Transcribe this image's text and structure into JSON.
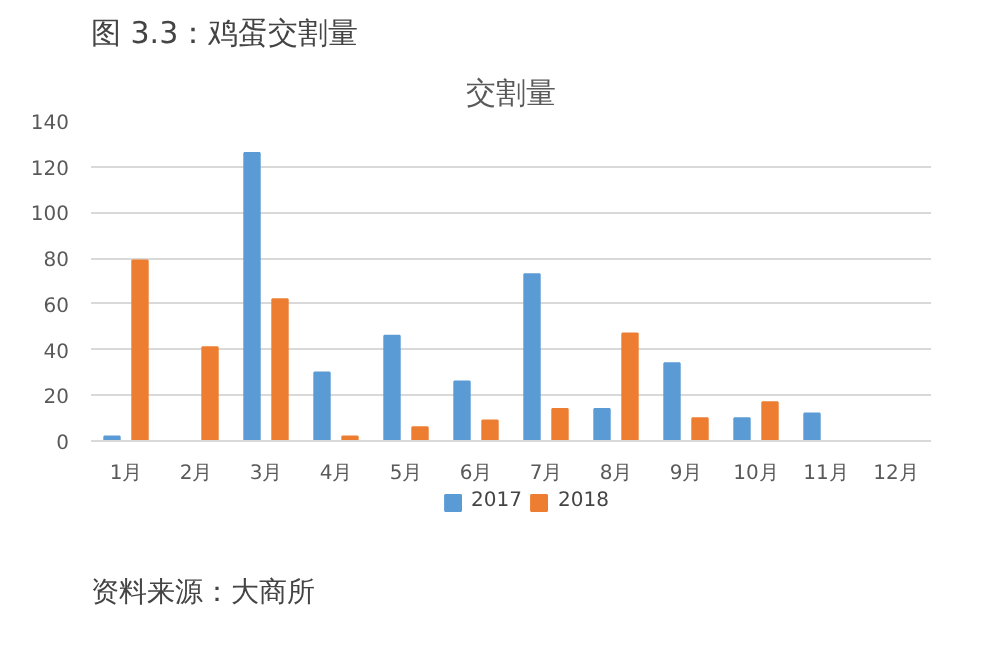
{
  "chart_data": {
    "type": "bar",
    "title": "交割量",
    "subtitle": "图 3.3：鸡蛋交割量",
    "annotations": [
      "资料来源：大商所"
    ],
    "categories": [
      "1月",
      "2月",
      "3月",
      "4月",
      "5月",
      "6月",
      "7月",
      "8月",
      "9月",
      "10月",
      "11月",
      "12月"
    ],
    "series": [
      {
        "name": "2017",
        "color": "#5b9bd5",
        "values": [
          2,
          null,
          126,
          30,
          46,
          26,
          73,
          14,
          34,
          10,
          12,
          null
        ]
      },
      {
        "name": "2018",
        "color": "#ed7d31",
        "values": [
          79,
          41,
          62,
          2,
          6,
          9,
          14,
          47,
          10,
          17,
          null,
          null
        ]
      }
    ],
    "ylim": [
      0,
      140
    ],
    "yticks": [
      0,
      20,
      40,
      60,
      80,
      100,
      120,
      140
    ],
    "grid": "y",
    "legend": "bottom"
  }
}
